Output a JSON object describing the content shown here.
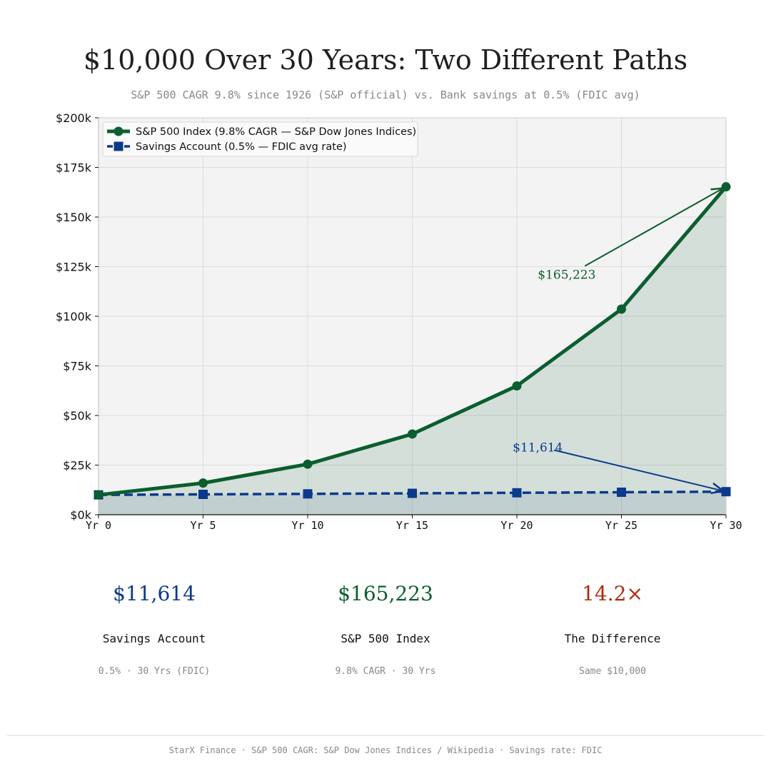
{
  "header": {
    "title": "$10,000 Over 30 Years: Two Different Paths",
    "subtitle": "S&P 500 CAGR 9.8% since 1926 (S&P official)  vs.  Bank savings at 0.5% (FDIC avg)"
  },
  "chart_data": {
    "type": "line",
    "categories": [
      "Yr 0",
      "Yr 5",
      "Yr 10",
      "Yr 15",
      "Yr 20",
      "Yr 25",
      "Yr 30"
    ],
    "x": [
      0,
      5,
      10,
      15,
      20,
      25,
      30
    ],
    "xlim": [
      0,
      30
    ],
    "ylim": [
      0,
      200000
    ],
    "yticks": [
      0,
      25000,
      50000,
      75000,
      100000,
      125000,
      150000,
      175000,
      200000
    ],
    "ytick_labels": [
      "$0k",
      "$25k",
      "$50k",
      "$75k",
      "$100k",
      "$125k",
      "$150k",
      "$175k",
      "$200k"
    ],
    "grid": true,
    "legend_position": "top-left",
    "series": [
      {
        "name": "S&P 500 Index (9.8% CAGR — S&P Dow Jones Indices)",
        "values": [
          10000,
          15960,
          25470,
          40660,
          64900,
          103590,
          165223
        ],
        "color": "#0b5e2f",
        "marker": "circle",
        "line_style": "solid",
        "fill": true
      },
      {
        "name": "Savings Account (0.5% — FDIC avg rate)",
        "values": [
          10000,
          10253,
          10511,
          10777,
          11049,
          11328,
          11614
        ],
        "color": "#0b3a8a",
        "marker": "square",
        "line_style": "dashed",
        "fill": true
      }
    ],
    "annotations": [
      {
        "text": "$165,223",
        "x": 30,
        "y": 165223,
        "text_x": 21,
        "text_y": 121000,
        "color": "#0b5e2f"
      },
      {
        "text": "$11,614",
        "x": 30,
        "y": 11614,
        "text_x": 19.8,
        "text_y": 34000,
        "color": "#0b3a8a"
      }
    ]
  },
  "stats": [
    {
      "value": "$11,614",
      "label": "Savings Account",
      "sub": "0.5% · 30 Yrs (FDIC)",
      "color": "#0b3a8a"
    },
    {
      "value": "$165,223",
      "label": "S&P 500 Index",
      "sub": "9.8% CAGR · 30 Yrs",
      "color": "#0b5e2f"
    },
    {
      "value": "14.2×",
      "label": "The Difference",
      "sub": "Same $10,000",
      "color": "#b02a10"
    }
  ],
  "footer": {
    "text": "StarX Finance  ·  S&P 500 CAGR: S&P Dow Jones Indices / Wikipedia  ·  Savings rate: FDIC"
  }
}
